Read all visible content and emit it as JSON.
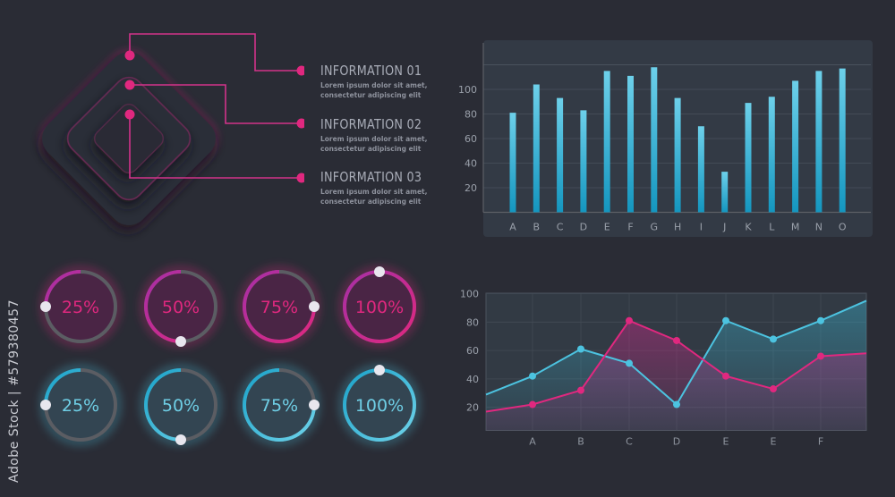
{
  "colors": {
    "background": "#2a2c35",
    "pink": "#e0287f",
    "purple": "#a62fa6",
    "cyan": "#4cc3e0",
    "track": "#5b5d63"
  },
  "watermark": {
    "side_text": "Adobe Stock | #579380457"
  },
  "infographic": {
    "items": [
      {
        "title": "INFORMATION 01",
        "desc": "Lorem ipsum dolor sit amet, consectetur adipiscing elit"
      },
      {
        "title": "INFORMATION 02",
        "desc": "Lorem ipsum dolor sit amet, consectetur adipiscing elit"
      },
      {
        "title": "INFORMATION 03",
        "desc": "Lorem ipsum dolor sit amet, consectetur adipiscing elit"
      }
    ]
  },
  "progress_rings": {
    "pink": [
      {
        "label": "25%",
        "value": 25
      },
      {
        "label": "50%",
        "value": 50
      },
      {
        "label": "75%",
        "value": 75
      },
      {
        "label": "100%",
        "value": 100
      }
    ],
    "cyan": [
      {
        "label": "25%",
        "value": 25
      },
      {
        "label": "50%",
        "value": 50
      },
      {
        "label": "75%",
        "value": 75
      },
      {
        "label": "100%",
        "value": 100
      }
    ]
  },
  "chart_data": [
    {
      "type": "bar",
      "categories": [
        "A",
        "B",
        "C",
        "D",
        "E",
        "F",
        "G",
        "H",
        "I",
        "J",
        "K",
        "L",
        "M",
        "N",
        "O"
      ],
      "values": [
        81,
        104,
        93,
        83,
        115,
        111,
        118,
        93,
        70,
        33,
        89,
        94,
        107,
        115,
        117
      ],
      "yticks": [
        20,
        40,
        60,
        80,
        100
      ],
      "ylim": [
        0,
        120
      ],
      "grid": true,
      "color": "#4cc3e0"
    },
    {
      "type": "area",
      "categories": [
        "A",
        "B",
        "C",
        "D",
        "E",
        "E",
        "F"
      ],
      "yticks": [
        20,
        40,
        60,
        80,
        100
      ],
      "ylim": [
        4,
        100
      ],
      "grid": true,
      "series": [
        {
          "color": "#4cc3e0",
          "start": 29,
          "values": [
            42,
            61,
            51,
            22,
            81,
            68,
            81
          ],
          "end": 95
        },
        {
          "color": "#e0287f",
          "start": 17,
          "values": [
            22,
            32,
            81,
            67,
            42,
            33,
            56
          ],
          "end": 58
        }
      ]
    }
  ]
}
